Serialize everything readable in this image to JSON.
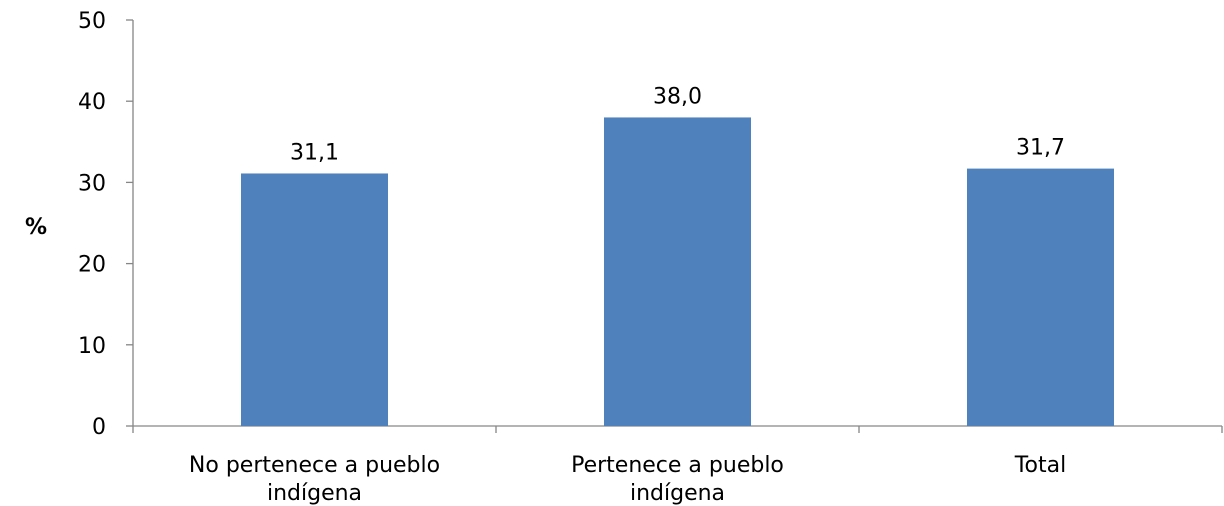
{
  "chart_data": {
    "type": "bar",
    "categories": [
      [
        "No pertenece a pueblo",
        "indígena"
      ],
      [
        "Pertenece a pueblo",
        "indígena"
      ],
      [
        "Total"
      ]
    ],
    "values": [
      31.1,
      38.0,
      31.7
    ],
    "value_labels": [
      "31,1",
      "38,0",
      "31,7"
    ],
    "title": "",
    "xlabel": "",
    "ylabel": "%",
    "ylim": [
      0,
      50
    ],
    "yticks": [
      0,
      10,
      20,
      30,
      40,
      50
    ],
    "grid": false,
    "legend": "none",
    "bar_color": "#4f81bd"
  }
}
